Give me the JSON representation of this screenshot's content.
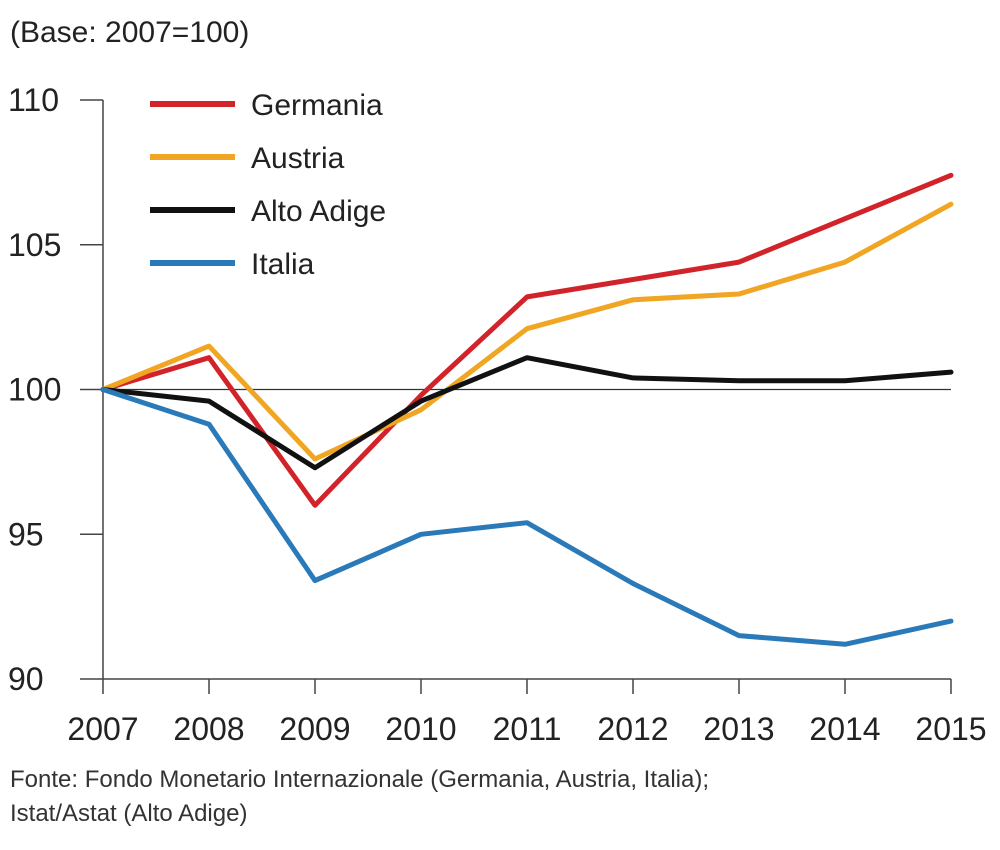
{
  "chart_data": {
    "type": "line",
    "base_note": "(Base: 2007=100)",
    "x": [
      "2007",
      "2008",
      "2009",
      "2010",
      "2011",
      "2012",
      "2013",
      "2014",
      "2015"
    ],
    "yticks": [
      "90",
      "95",
      "100",
      "105",
      "110"
    ],
    "ylim": [
      90,
      110
    ],
    "reference_line": 100,
    "legend_position": "top-left",
    "series": [
      {
        "name": "Germania",
        "color": "#d2232a",
        "values": [
          100,
          101.1,
          96.0,
          99.8,
          103.2,
          103.8,
          104.4,
          105.9,
          107.4
        ]
      },
      {
        "name": "Austria",
        "color": "#f0a523",
        "values": [
          100,
          101.5,
          97.6,
          99.3,
          102.1,
          103.1,
          103.3,
          104.4,
          106.4
        ]
      },
      {
        "name": "Alto Adige",
        "color": "#111111",
        "values": [
          100,
          99.6,
          97.3,
          99.6,
          101.1,
          100.4,
          100.3,
          100.3,
          100.6
        ]
      },
      {
        "name": "Italia",
        "color": "#2a7ab9",
        "values": [
          100,
          98.8,
          93.4,
          95.0,
          95.4,
          93.3,
          91.5,
          91.2,
          92.0
        ]
      }
    ]
  },
  "source": {
    "line1": "Fonte: Fondo Monetario Internazionale (Germania, Austria, Italia);",
    "line2": "Istat/Astat (Alto Adige)"
  }
}
